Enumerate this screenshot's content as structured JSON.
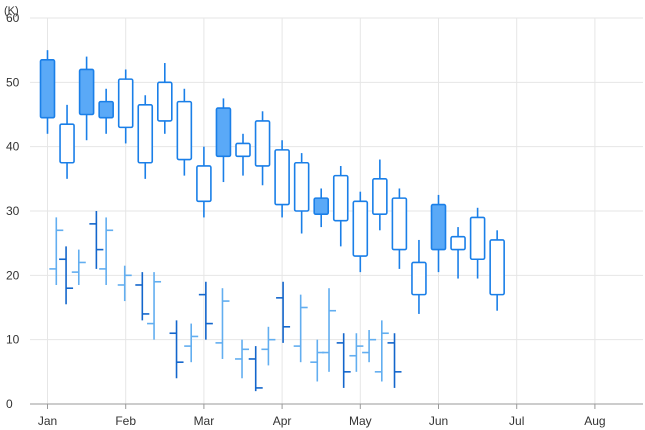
{
  "chart_data": {
    "type": "candlestick",
    "unit_label": "(K)",
    "y_ticks": [
      "0",
      "10",
      "20",
      "30",
      "40",
      "50",
      "60"
    ],
    "ylim": [
      0,
      60
    ],
    "grid": true,
    "x_ticks": [
      {
        "label": "Jan",
        "index": 0
      },
      {
        "label": "Feb",
        "index": 4
      },
      {
        "label": "Mar",
        "index": 8
      },
      {
        "label": "Apr",
        "index": 12
      },
      {
        "label": "May",
        "index": 16
      },
      {
        "label": "Jun",
        "index": 20
      },
      {
        "label": "Jul",
        "index": 24
      },
      {
        "label": "Aug",
        "index": 28
      }
    ],
    "colors": {
      "candle": "#1a7fe8",
      "candle_fill": "#5aa9f7",
      "ohlc_dark": "#1366cc",
      "ohlc_light": "#62aef0",
      "grid": "#e6e6e6",
      "axis": "#999999"
    },
    "candles": [
      {
        "open": 44.5,
        "high": 55.0,
        "low": 42.0,
        "close": 53.5
      },
      {
        "open": 43.5,
        "high": 46.5,
        "low": 35.0,
        "close": 37.5
      },
      {
        "open": 45.0,
        "high": 54.0,
        "low": 41.0,
        "close": 52.0
      },
      {
        "open": 44.5,
        "high": 49.0,
        "low": 42.0,
        "close": 47.0
      },
      {
        "open": 50.5,
        "high": 52.0,
        "low": 40.5,
        "close": 43.0
      },
      {
        "open": 46.5,
        "high": 48.0,
        "low": 35.0,
        "close": 37.5
      },
      {
        "open": 50.0,
        "high": 53.0,
        "low": 42.0,
        "close": 44.0
      },
      {
        "open": 47.0,
        "high": 49.0,
        "low": 35.5,
        "close": 38.0
      },
      {
        "open": 37.0,
        "high": 40.0,
        "low": 29.0,
        "close": 31.5
      },
      {
        "open": 38.5,
        "high": 47.5,
        "low": 34.5,
        "close": 46.0
      },
      {
        "open": 40.5,
        "high": 42.0,
        "low": 35.5,
        "close": 38.5
      },
      {
        "open": 44.0,
        "high": 45.5,
        "low": 34.0,
        "close": 37.0
      },
      {
        "open": 39.5,
        "high": 41.0,
        "low": 29.0,
        "close": 31.0
      },
      {
        "open": 37.5,
        "high": 39.0,
        "low": 26.5,
        "close": 30.0
      },
      {
        "open": 29.5,
        "high": 33.5,
        "low": 27.5,
        "close": 32.0
      },
      {
        "open": 35.5,
        "high": 37.0,
        "low": 24.5,
        "close": 28.5
      },
      {
        "open": 31.5,
        "high": 33.0,
        "low": 20.5,
        "close": 23.0
      },
      {
        "open": 35.0,
        "high": 38.0,
        "low": 27.0,
        "close": 29.5
      },
      {
        "open": 32.0,
        "high": 33.5,
        "low": 21.0,
        "close": 24.0
      },
      {
        "open": 22.0,
        "high": 25.5,
        "low": 14.0,
        "close": 17.0
      },
      {
        "open": 24.0,
        "high": 32.5,
        "low": 20.5,
        "close": 31.0
      },
      {
        "open": 26.0,
        "high": 27.5,
        "low": 19.5,
        "close": 24.0
      },
      {
        "open": 29.0,
        "high": 30.5,
        "low": 19.5,
        "close": 22.5
      },
      {
        "open": 25.5,
        "high": 27.0,
        "low": 14.5,
        "close": 17.0
      }
    ],
    "ohlc": [
      {
        "x": 0.45,
        "high": 29.0,
        "low": 18.5,
        "open": 21.0,
        "close": 27.0,
        "shade": "light"
      },
      {
        "x": 0.95,
        "high": 24.5,
        "low": 15.5,
        "open": 22.5,
        "close": 18.0,
        "shade": "dark"
      },
      {
        "x": 1.6,
        "high": 24.0,
        "low": 18.5,
        "open": 20.5,
        "close": 22.0,
        "shade": "light"
      },
      {
        "x": 2.5,
        "high": 30.0,
        "low": 21.0,
        "open": 28.0,
        "close": 24.0,
        "shade": "dark"
      },
      {
        "x": 3.0,
        "high": 29.0,
        "low": 18.5,
        "open": 21.0,
        "close": 27.0,
        "shade": "light"
      },
      {
        "x": 3.95,
        "high": 21.5,
        "low": 16.0,
        "open": 18.5,
        "close": 20.0,
        "shade": "light"
      },
      {
        "x": 4.85,
        "high": 20.5,
        "low": 13.0,
        "open": 18.5,
        "close": 14.0,
        "shade": "dark"
      },
      {
        "x": 5.45,
        "high": 20.5,
        "low": 10.0,
        "open": 12.5,
        "close": 19.0,
        "shade": "light"
      },
      {
        "x": 6.6,
        "high": 13.0,
        "low": 4.0,
        "open": 11.0,
        "close": 6.5,
        "shade": "dark"
      },
      {
        "x": 7.35,
        "high": 12.5,
        "low": 6.5,
        "open": 9.0,
        "close": 10.5,
        "shade": "light"
      },
      {
        "x": 8.1,
        "high": 19.0,
        "low": 10.0,
        "open": 17.0,
        "close": 12.5,
        "shade": "dark"
      },
      {
        "x": 8.95,
        "high": 18.0,
        "low": 7.0,
        "open": 9.5,
        "close": 16.0,
        "shade": "light"
      },
      {
        "x": 9.95,
        "high": 10.0,
        "low": 4.0,
        "open": 7.0,
        "close": 8.5,
        "shade": "light"
      },
      {
        "x": 10.65,
        "high": 9.0,
        "low": 2.0,
        "open": 7.0,
        "close": 2.5,
        "shade": "dark"
      },
      {
        "x": 11.3,
        "high": 12.0,
        "low": 6.0,
        "open": 8.5,
        "close": 10.0,
        "shade": "light"
      },
      {
        "x": 12.05,
        "high": 19.0,
        "low": 9.5,
        "open": 16.5,
        "close": 12.0,
        "shade": "dark"
      },
      {
        "x": 12.95,
        "high": 17.0,
        "low": 6.5,
        "open": 9.0,
        "close": 15.0,
        "shade": "light"
      },
      {
        "x": 13.8,
        "high": 10.0,
        "low": 3.5,
        "open": 6.5,
        "close": 8.0,
        "shade": "light"
      },
      {
        "x": 14.4,
        "high": 18.0,
        "low": 5.0,
        "open": 8.0,
        "close": 14.5,
        "shade": "light"
      },
      {
        "x": 15.15,
        "high": 11.0,
        "low": 2.5,
        "open": 9.5,
        "close": 5.0,
        "shade": "dark"
      },
      {
        "x": 15.8,
        "high": 11.0,
        "low": 5.0,
        "open": 7.5,
        "close": 9.0,
        "shade": "light"
      },
      {
        "x": 16.45,
        "high": 11.5,
        "low": 6.5,
        "open": 8.0,
        "close": 10.0,
        "shade": "light"
      },
      {
        "x": 17.1,
        "high": 13.0,
        "low": 3.5,
        "open": 5.0,
        "close": 11.0,
        "shade": "light"
      },
      {
        "x": 17.75,
        "high": 11.0,
        "low": 2.5,
        "open": 9.5,
        "close": 5.0,
        "shade": "dark"
      }
    ]
  }
}
